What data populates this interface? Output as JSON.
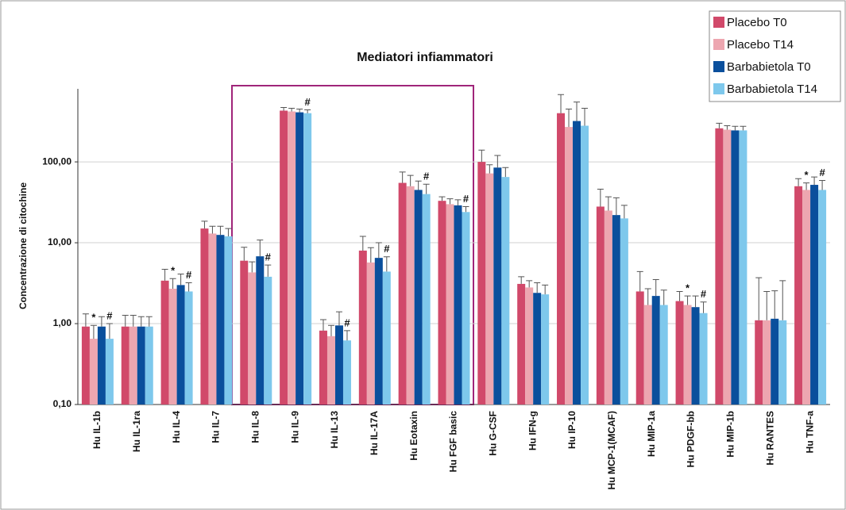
{
  "chart_data": {
    "type": "bar",
    "title": "Mediatori infiammatori",
    "ylabel": "Concentrazione di citochine",
    "log_scale": true,
    "grid": true,
    "legend": "top-right",
    "ylim": [
      0.1,
      800
    ],
    "yticks": [
      {
        "value": 0.1,
        "label": "0,10"
      },
      {
        "value": 1,
        "label": "1,00"
      },
      {
        "value": 10,
        "label": "10,00"
      },
      {
        "value": 100,
        "label": "100,00"
      }
    ],
    "categories": [
      "Hu IL-1b",
      "Hu IL-1ra",
      "Hu IL-4",
      "Hu IL-7",
      "Hu IL-8",
      "Hu IL-9",
      "Hu IL-13",
      "Hu IL-17A",
      "Hu Eotaxin",
      "Hu FGF basic",
      "Hu G-CSF",
      "Hu IFN-g",
      "Hu IP-10",
      "Hu MCP-1(MCAF)",
      "Hu MIP-1a",
      "Hu PDGF-bb",
      "Hu MIP-1b",
      "Hu RANTES",
      "Hu TNF-a"
    ],
    "series": [
      {
        "name": "Placebo T0",
        "color": "#d1496a",
        "values": [
          0.92,
          0.92,
          3.4,
          15,
          6,
          430,
          0.82,
          8,
          55,
          33,
          100,
          3.1,
          400,
          28,
          2.5,
          1.9,
          260,
          1.1,
          50
        ],
        "errors": [
          0.4,
          0.35,
          1.3,
          3.5,
          2.8,
          40,
          0.3,
          4,
          20,
          4,
          40,
          0.7,
          280,
          18,
          1.9,
          0.6,
          40,
          2.6,
          12
        ]
      },
      {
        "name": "Placebo T14",
        "color": "#eda6b0",
        "values": [
          0.65,
          0.92,
          2.7,
          13,
          4.3,
          420,
          0.7,
          5.7,
          50,
          30,
          72,
          2.8,
          270,
          25,
          1.7,
          1.7,
          250,
          1.1,
          45
        ],
        "errors": [
          0.3,
          0.35,
          0.9,
          3,
          1.5,
          40,
          0.25,
          3,
          18,
          5,
          20,
          0.6,
          180,
          12,
          1,
          0.5,
          30,
          1.4,
          10
        ]
      },
      {
        "name": "Barbabietola T0",
        "color": "#0a4f9c",
        "values": [
          0.92,
          0.92,
          3.0,
          12.5,
          6.8,
          410,
          0.95,
          6.5,
          45,
          29,
          85,
          2.4,
          320,
          22,
          2.2,
          1.6,
          245,
          1.15,
          52
        ],
        "errors": [
          0.3,
          0.3,
          1.1,
          3.5,
          4,
          40,
          0.45,
          3.5,
          13,
          5,
          35,
          0.8,
          230,
          14,
          1.3,
          0.6,
          30,
          1.4,
          13
        ]
      },
      {
        "name": "Barbabietola T14",
        "color": "#7ec8ec",
        "values": [
          0.65,
          0.92,
          2.5,
          12,
          3.8,
          400,
          0.62,
          4.4,
          40,
          24,
          65,
          2.3,
          280,
          20,
          1.7,
          1.35,
          245,
          1.1,
          45
        ],
        "errors": [
          0.35,
          0.3,
          0.7,
          3,
          1.5,
          40,
          0.2,
          2.3,
          13,
          4,
          20,
          0.7,
          180,
          9,
          0.9,
          0.5,
          30,
          2.3,
          14
        ]
      }
    ],
    "annotations": [
      {
        "text": "*",
        "category": "Hu IL-1b",
        "series": "Placebo T14"
      },
      {
        "text": "#",
        "category": "Hu IL-1b",
        "series": "Barbabietola T14"
      },
      {
        "text": "*",
        "category": "Hu IL-4",
        "series": "Placebo T14"
      },
      {
        "text": "#",
        "category": "Hu IL-4",
        "series": "Barbabietola T14"
      },
      {
        "text": "#",
        "category": "Hu IL-8",
        "series": "Barbabietola T14"
      },
      {
        "text": "#",
        "category": "Hu IL-9",
        "series": "Barbabietola T14"
      },
      {
        "text": "#",
        "category": "Hu IL-13",
        "series": "Barbabietola T14"
      },
      {
        "text": "#",
        "category": "Hu IL-17A",
        "series": "Barbabietola T14"
      },
      {
        "text": "#",
        "category": "Hu Eotaxin",
        "series": "Barbabietola T14"
      },
      {
        "text": "#",
        "category": "Hu FGF basic",
        "series": "Barbabietola T14"
      },
      {
        "text": "*",
        "category": "Hu PDGF-bb",
        "series": "Placebo T14"
      },
      {
        "text": "#",
        "category": "Hu PDGF-bb",
        "series": "Barbabietola T14"
      },
      {
        "text": "*",
        "category": "Hu TNF-a",
        "series": "Placebo T14"
      },
      {
        "text": "#",
        "category": "Hu TNF-a",
        "series": "Barbabietola T14"
      }
    ]
  }
}
